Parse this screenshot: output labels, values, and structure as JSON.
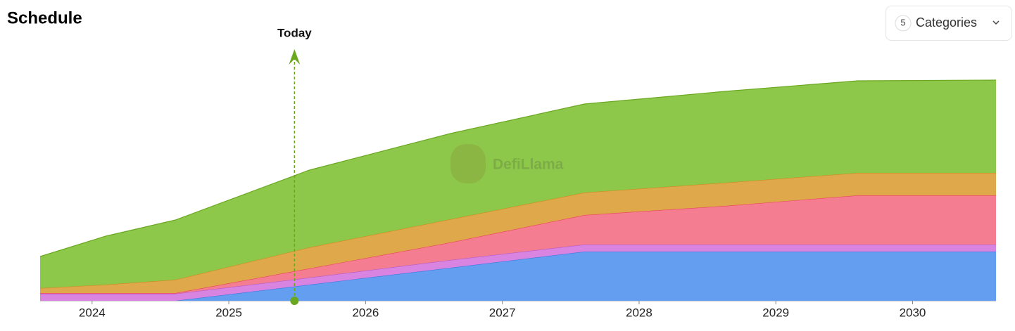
{
  "chart_data": {
    "type": "stacked-area",
    "title": "Schedule",
    "button": {
      "count": "5",
      "label": "Categories"
    },
    "watermark": "DefiLlama",
    "x": [
      2023.62,
      2024.1,
      2024.61,
      2025.59,
      2026.62,
      2027.6,
      2028.63,
      2029.6,
      2030.61
    ],
    "xlim": [
      2023.62,
      2030.61
    ],
    "xticks": [
      2024,
      2025,
      2026,
      2027,
      2028,
      2029,
      2030
    ],
    "ylim": [
      0,
      320
    ],
    "series": [
      {
        "color": "#639ef0",
        "edge": "#3f78e0",
        "values": [
          0,
          0,
          0,
          23,
          47,
          70,
          70,
          70,
          70
        ]
      },
      {
        "color": "#d884e0",
        "edge": "#b45cc8",
        "values": [
          10,
          10,
          10,
          10,
          11,
          10,
          10,
          10,
          10
        ]
      },
      {
        "color": "#f57d91",
        "edge": "#e8445e",
        "values": [
          1,
          1,
          1,
          13,
          25,
          42,
          55,
          70,
          70
        ]
      },
      {
        "color": "#dea84b",
        "edge": "#d08a1e",
        "values": [
          7,
          12,
          19,
          30,
          33,
          32,
          33,
          32,
          32
        ]
      },
      {
        "color": "#8dc84b",
        "edge": "#6aa820",
        "values": [
          45,
          69,
          85,
          110,
          122,
          126,
          130,
          131,
          132
        ]
      }
    ],
    "annotations": [
      {
        "x": 2025.48,
        "label": "Today",
        "color": "#6aa820"
      }
    ]
  }
}
